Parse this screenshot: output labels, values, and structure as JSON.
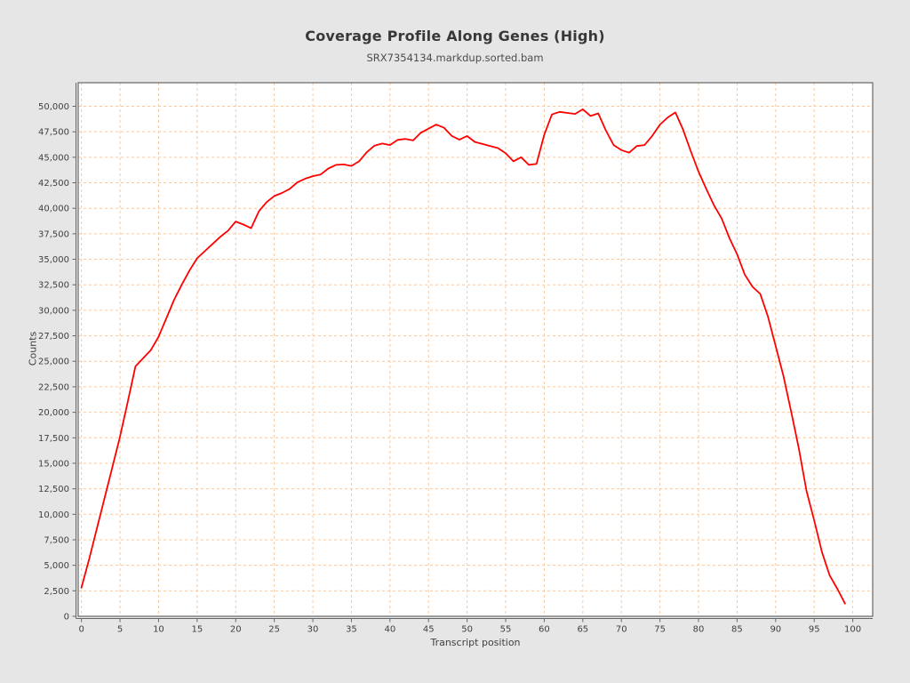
{
  "header": {
    "title": "Coverage Profile Along Genes (High)",
    "subtitle": "SRX7354134.markdup.sorted.bam"
  },
  "chart_data": {
    "type": "line",
    "title": "Coverage Profile Along Genes (High)",
    "subtitle": "SRX7354134.markdup.sorted.bam",
    "xlabel": "Transcript position",
    "ylabel": "Counts",
    "xlim": [
      -0.42,
      102.58
    ],
    "ylim": [
      0,
      52310
    ],
    "grid": "dashed, both axes, every tick",
    "legend": "none",
    "x_ticks": [
      0,
      5,
      10,
      15,
      20,
      25,
      30,
      35,
      40,
      45,
      50,
      55,
      60,
      65,
      70,
      75,
      80,
      85,
      90,
      95,
      100
    ],
    "x_tick_labels": [
      "0",
      "5",
      "10",
      "15",
      "20",
      "25",
      "30",
      "35",
      "40",
      "45",
      "50",
      "55",
      "60",
      "65",
      "70",
      "75",
      "80",
      "85",
      "90",
      "95",
      "100"
    ],
    "y_ticks": [
      0,
      2500,
      5000,
      7500,
      10000,
      12500,
      15000,
      17500,
      20000,
      22500,
      25000,
      27500,
      30000,
      32500,
      35000,
      37500,
      40000,
      42500,
      45000,
      47500,
      50000
    ],
    "y_tick_labels": [
      "0",
      "2,500",
      "5,000",
      "7,500",
      "10,000",
      "12,500",
      "15,000",
      "17,500",
      "20,000",
      "22,500",
      "25,000",
      "27,500",
      "30,000",
      "32,500",
      "35,000",
      "37,500",
      "40,000",
      "42,500",
      "45,000",
      "47,500",
      "50,000"
    ],
    "series": [
      {
        "name": "SRX7354134.markdup.sorted.bam",
        "color": "#ff0000",
        "x": [
          0,
          1,
          2,
          3,
          4,
          5,
          6,
          7,
          8,
          9,
          10,
          11,
          12,
          13,
          14,
          15,
          16,
          17,
          18,
          19,
          20,
          21,
          22,
          23,
          24,
          25,
          26,
          27,
          28,
          29,
          30,
          31,
          32,
          33,
          34,
          35,
          36,
          37,
          38,
          39,
          40,
          41,
          42,
          43,
          44,
          45,
          46,
          47,
          48,
          49,
          50,
          51,
          52,
          53,
          54,
          55,
          56,
          57,
          58,
          59,
          60,
          61,
          62,
          63,
          64,
          65,
          66,
          67,
          68,
          69,
          70,
          71,
          72,
          73,
          74,
          75,
          76,
          77,
          78,
          79,
          80,
          81,
          82,
          83,
          84,
          85,
          86,
          87,
          88,
          89,
          90,
          91,
          92,
          93,
          94,
          95,
          96,
          97,
          98,
          99
        ],
        "values": [
          2800,
          5600,
          8600,
          11600,
          14600,
          17600,
          21000,
          24500,
          25300,
          26100,
          27400,
          29200,
          31000,
          32500,
          33900,
          35100,
          35800,
          36500,
          37200,
          37800,
          38700,
          38400,
          38050,
          39700,
          40600,
          41200,
          41500,
          41900,
          42550,
          42900,
          43150,
          43300,
          43900,
          44250,
          44300,
          44150,
          44600,
          45500,
          46150,
          46350,
          46200,
          46700,
          46800,
          46650,
          47400,
          47800,
          48200,
          47900,
          47100,
          46720,
          47090,
          46500,
          46300,
          46100,
          45900,
          45400,
          44600,
          45000,
          44250,
          44350,
          47200,
          49200,
          49450,
          49350,
          49250,
          49700,
          49050,
          49300,
          47600,
          46200,
          45700,
          45450,
          46100,
          46200,
          47100,
          48200,
          48900,
          49400,
          47700,
          45600,
          43600,
          41900,
          40300,
          39000,
          37100,
          35500,
          33500,
          32300,
          31600,
          29400,
          26500,
          23600,
          20100,
          16500,
          12300,
          9400,
          6300,
          4000,
          2700,
          1250
        ]
      }
    ]
  },
  "colors": {
    "background": "#e6e6e6",
    "plot_background": "#ffffff",
    "grid": "#f7c9a2",
    "frame": "#666666",
    "tick": "#666666",
    "line": "#ff0000",
    "title_text": "#383838",
    "subtitle_text": "#4c4c4c",
    "tick_text": "#404040"
  }
}
